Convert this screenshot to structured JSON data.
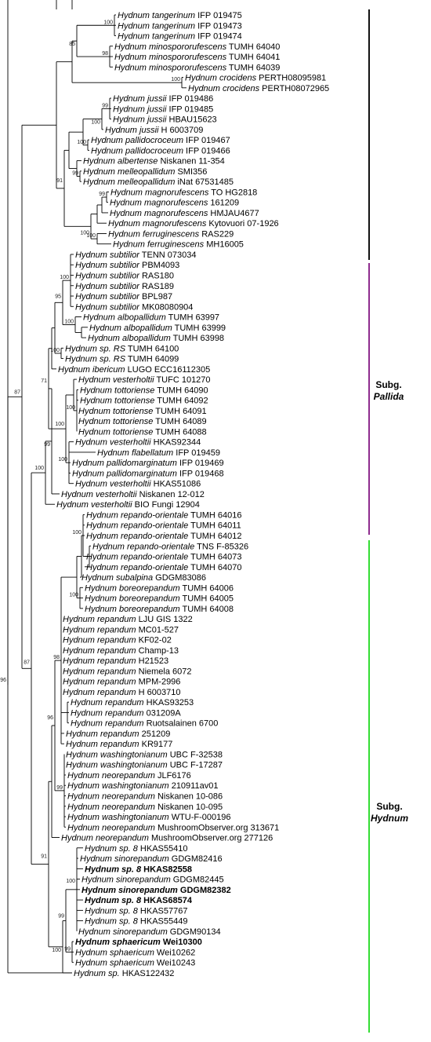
{
  "groups": [
    {
      "line1": "",
      "line2": "",
      "color": "#111111"
    },
    {
      "line1": "Subg.",
      "line2": "Pallida",
      "color": "#8e2c8e"
    },
    {
      "line1": "Subg.",
      "line2": "Hydnum",
      "color": "#33dd33"
    }
  ],
  "taxa": [
    {
      "genus": "Hydnum",
      "species": "tangerinum",
      "voucher": "IFP 019475"
    },
    {
      "genus": "Hydnum",
      "species": "tangerinum",
      "voucher": "IFP 019473"
    },
    {
      "genus": "Hydnum",
      "species": "tangerinum",
      "voucher": "IFP 019474"
    },
    {
      "genus": "Hydnum",
      "species": "minospororufescens",
      "voucher": "TUMH 64040"
    },
    {
      "genus": "Hydnum",
      "species": "minospororufescens",
      "voucher": "TUMH 64041"
    },
    {
      "genus": "Hydnum",
      "species": "minospororufescens",
      "voucher": "TUMH 64039"
    },
    {
      "genus": "Hydnum",
      "species": "crocidens",
      "voucher": "PERTH08095981"
    },
    {
      "genus": "Hydnum",
      "species": "crocidens",
      "voucher": "PERTH08072965"
    },
    {
      "genus": "Hydnum",
      "species": "jussii",
      "voucher": "IFP 019486"
    },
    {
      "genus": "Hydnum",
      "species": "jussii",
      "voucher": "IFP 019485"
    },
    {
      "genus": "Hydnum",
      "species": "jussii",
      "voucher": "HBAU15623"
    },
    {
      "genus": "Hydnum",
      "species": "jussii",
      "voucher": "H 6003709"
    },
    {
      "genus": "Hydnum",
      "species": "pallidocroceum",
      "voucher": "IFP 019467"
    },
    {
      "genus": "Hydnum",
      "species": "pallidocroceum",
      "voucher": "IFP 019466"
    },
    {
      "genus": "Hydnum",
      "species": "albertense",
      "voucher": "Niskanen 11-354"
    },
    {
      "genus": "Hydnum",
      "species": "melleopallidum",
      "voucher": "SMI356"
    },
    {
      "genus": "Hydnum",
      "species": "melleopallidum",
      "voucher": "iNat 67531485"
    },
    {
      "genus": "Hydnum",
      "species": "magnorufescens",
      "voucher": "TO HG2818"
    },
    {
      "genus": "Hydnum",
      "species": "magnorufescens",
      "voucher": "161209"
    },
    {
      "genus": "Hydnum",
      "species": "magnorufescens",
      "voucher": "HMJAU4677"
    },
    {
      "genus": "Hydnum",
      "species": "magnorufescens",
      "voucher": "Kytovuori 07-1926"
    },
    {
      "genus": "Hydnum",
      "species": "ferruginescens",
      "voucher": "RAS229"
    },
    {
      "genus": "Hydnum",
      "species": "ferruginescens",
      "voucher": "MH16005"
    },
    {
      "genus": "Hydnum",
      "species": "subtilior",
      "voucher": "TENN 073034"
    },
    {
      "genus": "Hydnum",
      "species": "subtilior",
      "voucher": "PBM4093"
    },
    {
      "genus": "Hydnum",
      "species": "subtilior",
      "voucher": "RAS180"
    },
    {
      "genus": "Hydnum",
      "species": "subtilior",
      "voucher": "RAS189"
    },
    {
      "genus": "Hydnum",
      "species": "subtilior",
      "voucher": "BPL987"
    },
    {
      "genus": "Hydnum",
      "species": "subtilior",
      "voucher": "MK08080904"
    },
    {
      "genus": "Hydnum",
      "species": "albopallidum",
      "voucher": "TUMH 63997"
    },
    {
      "genus": "Hydnum",
      "species": "albopallidum",
      "voucher": "TUMH 63999"
    },
    {
      "genus": "Hydnum",
      "species": "albopallidum",
      "voucher": "TUMH 63998"
    },
    {
      "genus": "Hydnum",
      "species": "sp. RS",
      "voucher": "TUMH 64100"
    },
    {
      "genus": "Hydnum",
      "species": "sp. RS",
      "voucher": "TUMH 64099"
    },
    {
      "genus": "Hydnum",
      "species": "ibericum",
      "voucher": "LUGO ECC16112305"
    },
    {
      "genus": "Hydnum",
      "species": "vesterholtii",
      "voucher": "TUFC 101270"
    },
    {
      "genus": "Hydnum",
      "species": "tottoriense",
      "voucher": "TUMH 64090"
    },
    {
      "genus": "Hydnum",
      "species": "tottoriense",
      "voucher": "TUMH 64092"
    },
    {
      "genus": "Hydnum",
      "species": "tottoriense",
      "voucher": "TUMH 64091"
    },
    {
      "genus": "Hydnum",
      "species": "tottoriense",
      "voucher": "TUMH 64089"
    },
    {
      "genus": "Hydnum",
      "species": "tottoriense",
      "voucher": "TUMH 64088"
    },
    {
      "genus": "Hydnum",
      "species": "vesterholtii",
      "voucher": "HKAS92344"
    },
    {
      "genus": "Hydnum",
      "species": "flabellatum",
      "voucher": "IFP 019459"
    },
    {
      "genus": "Hydnum",
      "species": "pallidomarginatum",
      "voucher": "IFP 019469"
    },
    {
      "genus": "Hydnum",
      "species": "pallidomarginatum",
      "voucher": "IFP 019468"
    },
    {
      "genus": "Hydnum",
      "species": "vesterholtii",
      "voucher": "HKAS51086"
    },
    {
      "genus": "Hydnum",
      "species": "vesterholtii",
      "voucher": "Niskanen 12-012"
    },
    {
      "genus": "Hydnum",
      "species": "vesterholtii",
      "voucher": "BIO Fungi 12904"
    },
    {
      "genus": "Hydnum",
      "species": "repando-orientale",
      "voucher": "TUMH 64016"
    },
    {
      "genus": "Hydnum",
      "species": "repando-orientale",
      "voucher": "TUMH 64011"
    },
    {
      "genus": "Hydnum",
      "species": "repando-orientale",
      "voucher": "TUMH 64012"
    },
    {
      "genus": "Hydnum",
      "species": "repando-orientale",
      "voucher": "TNS F-85326"
    },
    {
      "genus": "Hydnum",
      "species": "repando-orientale",
      "voucher": "TUMH 64073"
    },
    {
      "genus": "Hydnum",
      "species": "repando-orientale",
      "voucher": "TUMH 64070"
    },
    {
      "genus": "Hydnum",
      "species": "subalpina",
      "voucher": "GDGM83086"
    },
    {
      "genus": "Hydnum",
      "species": "boreorepandum",
      "voucher": "TUMH 64006"
    },
    {
      "genus": "Hydnum",
      "species": "boreorepandum",
      "voucher": "TUMH 64005"
    },
    {
      "genus": "Hydnum",
      "species": "boreorepandum",
      "voucher": "TUMH 64008"
    },
    {
      "genus": "Hydnum",
      "species": "repandum",
      "voucher": "LJU GIS 1322"
    },
    {
      "genus": "Hydnum",
      "species": "repandum",
      "voucher": "MC01-527"
    },
    {
      "genus": "Hydnum",
      "species": "repandum",
      "voucher": "KF02-02"
    },
    {
      "genus": "Hydnum",
      "species": "repandum",
      "voucher": "Champ-13"
    },
    {
      "genus": "Hydnum",
      "species": "repandum",
      "voucher": "H21523"
    },
    {
      "genus": "Hydnum",
      "species": "repandum",
      "voucher": "Niemela 6072"
    },
    {
      "genus": "Hydnum",
      "species": "repandum",
      "voucher": "MPM-2996"
    },
    {
      "genus": "Hydnum",
      "species": "repandum",
      "voucher": "H 6003710"
    },
    {
      "genus": "Hydnum",
      "species": "repandum",
      "voucher": "HKAS93253"
    },
    {
      "genus": "Hydnum",
      "species": "repandum",
      "voucher": "031209A"
    },
    {
      "genus": "Hydnum",
      "species": "repandum",
      "voucher": "Ruotsalainen 6700"
    },
    {
      "genus": "Hydnum",
      "species": "repandum",
      "voucher": "251209"
    },
    {
      "genus": "Hydnum",
      "species": "repandum",
      "voucher": "KR9177"
    },
    {
      "genus": "Hydnum",
      "species": "washingtonianum",
      "voucher": "UBC F-32538"
    },
    {
      "genus": "Hydnum",
      "species": "washingtonianum",
      "voucher": "UBC F-17287"
    },
    {
      "genus": "Hydnum",
      "species": "neorepandum",
      "voucher": "JLF6176"
    },
    {
      "genus": "Hydnum",
      "species": "washingtonianum",
      "voucher": "210911av01"
    },
    {
      "genus": "Hydnum",
      "species": "neorepandum",
      "voucher": "Niskanen 10-086"
    },
    {
      "genus": "Hydnum",
      "species": "neorepandum",
      "voucher": "Niskanen 10-095"
    },
    {
      "genus": "Hydnum",
      "species": "washingtonianum",
      "voucher": "WTU-F-000196"
    },
    {
      "genus": "Hydnum",
      "species": "neorepandum",
      "voucher": "MushroomObserver.org 313671"
    },
    {
      "genus": "Hydnum",
      "species": "neorepandum",
      "voucher": "MushroomObserver.org 277126"
    },
    {
      "genus": "Hydnum",
      "species": "sp. 8",
      "voucher": "HKAS55410"
    },
    {
      "genus": "Hydnum",
      "species": "sinorepandum",
      "voucher": "GDGM82416"
    },
    {
      "genus": "Hydnum",
      "species": "sp. 8",
      "voucher": "HKAS82558"
    },
    {
      "genus": "Hydnum",
      "species": "sinorepandum",
      "voucher": "GDGM82445"
    },
    {
      "genus": "Hydnum",
      "species": "sinorepandum",
      "voucher": "GDGM82382"
    },
    {
      "genus": "Hydnum",
      "species": "sp. 8",
      "voucher": "HKAS68574"
    },
    {
      "genus": "Hydnum",
      "species": "sp. 8",
      "voucher": "HKAS57767"
    },
    {
      "genus": "Hydnum",
      "species": "sp. 8",
      "voucher": "HKAS55449"
    },
    {
      "genus": "Hydnum",
      "species": "sinorepandum",
      "voucher": "GDGM90134"
    },
    {
      "genus": "Hydnum",
      "species": "sphaericum",
      "voucher": "Wei10300"
    },
    {
      "genus": "Hydnum",
      "species": "sphaericum",
      "voucher": "Wei10262"
    },
    {
      "genus": "Hydnum",
      "species": "sphaericum",
      "voucher": "Wei10243"
    },
    {
      "genus": "Hydnum",
      "species": "sp.",
      "voucher": "HKAS122432"
    }
  ],
  "supports": [
    "100",
    "98",
    "85",
    "100",
    "99",
    "100",
    "100",
    "99",
    "91",
    "99",
    "100",
    "100",
    "87",
    "100",
    "95",
    "100",
    "100",
    "100",
    "100",
    "71",
    "100",
    "100",
    "99",
    "100",
    "100",
    "98",
    "96",
    "99",
    "91",
    "100",
    "99",
    "99",
    "100",
    "87",
    "96"
  ]
}
